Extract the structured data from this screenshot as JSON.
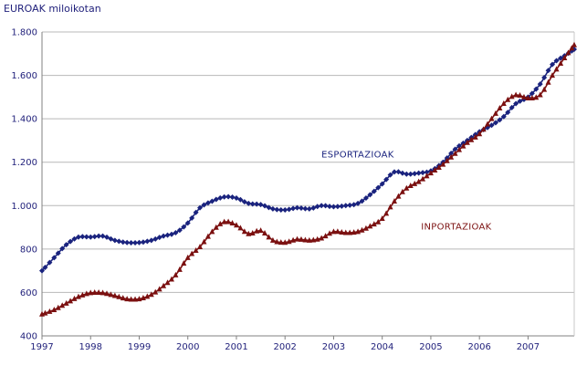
{
  "chart_data": {
    "type": "line",
    "unit_label": "EUROAK miloikotan",
    "x_ticks": [
      "1997",
      "1998",
      "1999",
      "2000",
      "2001",
      "2002",
      "2003",
      "2004",
      "2005",
      "2006",
      "2007"
    ],
    "y_ticks": [
      "400",
      "600",
      "800",
      "1.000",
      "1.200",
      "1.400",
      "1.600",
      "1.800"
    ],
    "ylim": [
      400,
      1800
    ],
    "xlim": [
      1997,
      2007.95
    ],
    "grid": "horizontal",
    "series": [
      {
        "name": "ESPORTAZIOAK",
        "color": "#1a237e",
        "marker": "diamond",
        "points": [
          [
            1997.0,
            700
          ],
          [
            1997.25,
            760
          ],
          [
            1997.5,
            820
          ],
          [
            1997.75,
            855
          ],
          [
            1998.0,
            855
          ],
          [
            1998.25,
            860
          ],
          [
            1998.5,
            840
          ],
          [
            1998.75,
            830
          ],
          [
            1999.0,
            830
          ],
          [
            1999.25,
            840
          ],
          [
            1999.5,
            860
          ],
          [
            1999.75,
            875
          ],
          [
            2000.0,
            920
          ],
          [
            2000.25,
            990
          ],
          [
            2000.5,
            1020
          ],
          [
            2000.75,
            1040
          ],
          [
            2001.0,
            1035
          ],
          [
            2001.25,
            1010
          ],
          [
            2001.5,
            1005
          ],
          [
            2001.75,
            985
          ],
          [
            2002.0,
            980
          ],
          [
            2002.25,
            990
          ],
          [
            2002.5,
            985
          ],
          [
            2002.75,
            1000
          ],
          [
            2003.0,
            995
          ],
          [
            2003.25,
            1000
          ],
          [
            2003.5,
            1010
          ],
          [
            2003.75,
            1050
          ],
          [
            2004.0,
            1100
          ],
          [
            2004.25,
            1155
          ],
          [
            2004.5,
            1145
          ],
          [
            2004.75,
            1150
          ],
          [
            2005.0,
            1160
          ],
          [
            2005.25,
            1200
          ],
          [
            2005.5,
            1260
          ],
          [
            2005.75,
            1300
          ],
          [
            2006.0,
            1340
          ],
          [
            2006.25,
            1370
          ],
          [
            2006.5,
            1410
          ],
          [
            2006.75,
            1470
          ],
          [
            2007.0,
            1500
          ],
          [
            2007.25,
            1560
          ],
          [
            2007.5,
            1650
          ],
          [
            2007.75,
            1690
          ],
          [
            2007.95,
            1720
          ]
        ]
      },
      {
        "name": "INPORTAZIOAK",
        "color": "#7b1010",
        "marker": "triangle",
        "points": [
          [
            1997.0,
            500
          ],
          [
            1997.25,
            520
          ],
          [
            1997.5,
            550
          ],
          [
            1997.75,
            580
          ],
          [
            1998.0,
            598
          ],
          [
            1998.25,
            598
          ],
          [
            1998.5,
            585
          ],
          [
            1998.75,
            570
          ],
          [
            1999.0,
            570
          ],
          [
            1999.25,
            590
          ],
          [
            1999.5,
            630
          ],
          [
            1999.75,
            680
          ],
          [
            2000.0,
            760
          ],
          [
            2000.25,
            810
          ],
          [
            2000.5,
            880
          ],
          [
            2000.75,
            925
          ],
          [
            2001.0,
            910
          ],
          [
            2001.25,
            870
          ],
          [
            2001.5,
            885
          ],
          [
            2001.75,
            840
          ],
          [
            2002.0,
            830
          ],
          [
            2002.25,
            845
          ],
          [
            2002.5,
            840
          ],
          [
            2002.75,
            850
          ],
          [
            2003.0,
            880
          ],
          [
            2003.25,
            875
          ],
          [
            2003.5,
            880
          ],
          [
            2003.75,
            905
          ],
          [
            2004.0,
            940
          ],
          [
            2004.25,
            1020
          ],
          [
            2004.5,
            1080
          ],
          [
            2004.75,
            1110
          ],
          [
            2005.0,
            1150
          ],
          [
            2005.25,
            1190
          ],
          [
            2005.5,
            1240
          ],
          [
            2005.75,
            1290
          ],
          [
            2006.0,
            1330
          ],
          [
            2006.25,
            1400
          ],
          [
            2006.5,
            1470
          ],
          [
            2006.75,
            1510
          ],
          [
            2007.0,
            1495
          ],
          [
            2007.25,
            1510
          ],
          [
            2007.5,
            1600
          ],
          [
            2007.75,
            1680
          ],
          [
            2007.95,
            1740
          ]
        ]
      }
    ]
  }
}
